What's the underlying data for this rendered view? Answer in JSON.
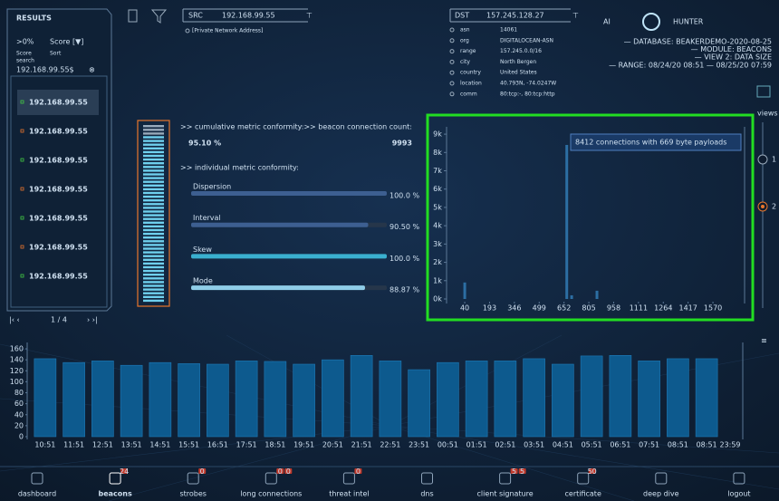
{
  "results": {
    "title": "RESULTS",
    "filter": ">0%",
    "sort": "Score [▼]",
    "filter_label": "Score",
    "sort_label": "Sort",
    "search_label": "search",
    "search": "192.168.99.55$",
    "items": [
      "192.168.99.55",
      "192.168.99.55",
      "192.168.99.55",
      "192.168.99.55",
      "192.168.99.55",
      "192.168.99.55",
      "192.168.99.55"
    ],
    "pager": "1 / 4"
  },
  "src": {
    "label": "SRC",
    "ip": "192.168.99.55",
    "note": "[Private Network Address]"
  },
  "dst": {
    "label": "DST",
    "ip": "157.245.128.27",
    "fields": [
      {
        "key": "asn",
        "value": "14061"
      },
      {
        "key": "org",
        "value": "DIGITALOCEAN-ASN"
      },
      {
        "key": "range",
        "value": "157.245.0.0/16"
      },
      {
        "key": "city",
        "value": "North Bergen"
      },
      {
        "key": "country",
        "value": "United States"
      },
      {
        "key": "location",
        "value": "40.793N, -74.0247W"
      },
      {
        "key": "comm",
        "value": "80:tcp:-, 80:tcp:http"
      }
    ]
  },
  "brand": {
    "name_left": "AI",
    "name_right": "HUNTER",
    "info": [
      "— DATABASE: BEAKERDEMO-2020-08-25",
      "— MODULE: BEACONS",
      "— VIEW 2: DATA SIZE",
      "— RANGE: 08/24/20 08:51 — 08/25/20 07:59"
    ]
  },
  "metrics": {
    "cumulative_label": ">> cumulative metric conformity:",
    "cumulative": "95.10 %",
    "count_label": ">> beacon connection count:",
    "count": "9993",
    "individual_label": ">> individual metric conformity:",
    "xlim": [
      0,
      100
    ],
    "items": [
      {
        "name": "Dispersion",
        "value": 100,
        "value_label": "100.0 %"
      },
      {
        "name": "Interval",
        "value": 90.5,
        "value_label": "90.50 %"
      },
      {
        "name": "Skew",
        "value": 100,
        "value_label": "100.0 %"
      },
      {
        "name": "Mode",
        "value": 88.87,
        "value_label": "88.87 %"
      }
    ]
  },
  "histogram": {
    "type": "bar",
    "annotation": "8412 connections with 669 byte payloads",
    "x": [
      40,
      669,
      699,
      855
    ],
    "values": [
      900,
      8412,
      200,
      450
    ],
    "color": "#2c6ea3",
    "xlim": [
      -72,
      1765
    ],
    "xticks": [
      40,
      193,
      346,
      499,
      652,
      805,
      958,
      1111,
      1264,
      1417,
      1570
    ],
    "ylim": [
      0,
      9400
    ],
    "yticks": [
      {
        "value": 0,
        "label": "0k"
      },
      {
        "value": 1000,
        "label": "1k"
      },
      {
        "value": 2000,
        "label": "2k"
      },
      {
        "value": 3000,
        "label": "3k"
      },
      {
        "value": 4000,
        "label": "4k"
      },
      {
        "value": 5000,
        "label": "5k"
      },
      {
        "value": 6000,
        "label": "6k"
      },
      {
        "value": 7000,
        "label": "7k"
      },
      {
        "value": 8000,
        "label": "8k"
      },
      {
        "value": 9000,
        "label": "9k"
      }
    ]
  },
  "views": {
    "label": "views",
    "options": [
      "1",
      "2"
    ]
  },
  "timeline": {
    "type": "bar",
    "categories": [
      "10:51",
      "11:51",
      "12:51",
      "13:51",
      "14:51",
      "15:51",
      "16:51",
      "17:51",
      "18:51",
      "19:51",
      "20:51",
      "21:51",
      "22:51",
      "23:51",
      "00:51",
      "01:51",
      "02:51",
      "03:51",
      "04:51",
      "05:51",
      "06:51",
      "07:51",
      "08:51",
      "08:51"
    ],
    "end_label": "23:59",
    "values": [
      142,
      135,
      138,
      130,
      135,
      133,
      132,
      138,
      137,
      132,
      140,
      148,
      138,
      122,
      135,
      138,
      138,
      142,
      132,
      147,
      148,
      138,
      142,
      142
    ],
    "color": "#0d5a8e",
    "ylim": [
      0,
      165
    ],
    "yticks": [
      0,
      20,
      40,
      60,
      80,
      100,
      120,
      140,
      160
    ]
  },
  "nav": [
    {
      "label": "dashboard",
      "badges": []
    },
    {
      "label": "beacons",
      "badges": [
        "24"
      ]
    },
    {
      "label": "strobes",
      "badges": [
        "0"
      ]
    },
    {
      "label": "long connections",
      "badges": [
        "0",
        "0"
      ]
    },
    {
      "label": "threat intel",
      "badges": [
        "0"
      ]
    },
    {
      "label": "dns",
      "badges": []
    },
    {
      "label": "client signature",
      "badges": [
        "5",
        "5"
      ]
    },
    {
      "label": "certificate",
      "badges": [
        "50"
      ]
    },
    {
      "label": "deep dive",
      "badges": []
    },
    {
      "label": "logout",
      "badges": []
    }
  ]
}
